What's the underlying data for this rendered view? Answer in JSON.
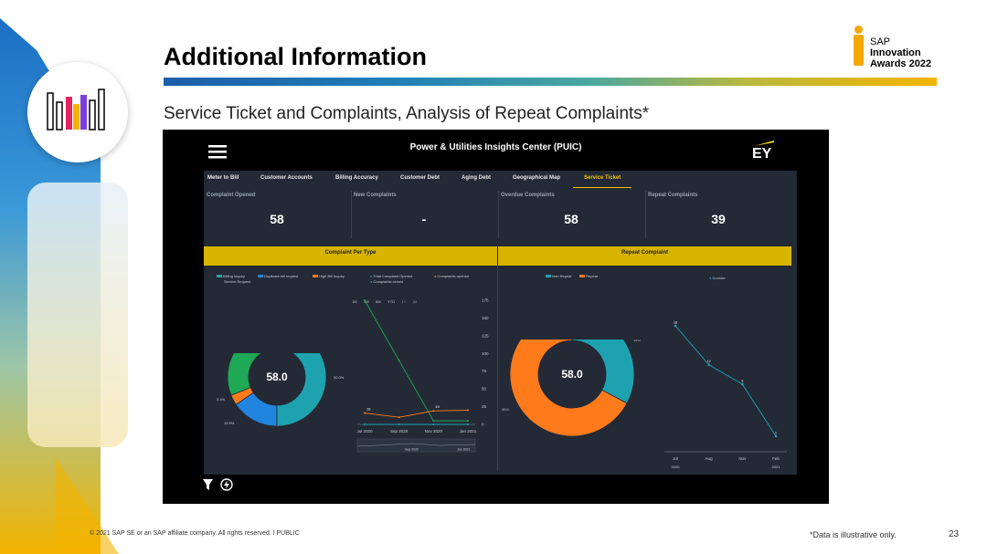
{
  "slide": {
    "title": "Additional Information",
    "subtitle": "Service Ticket and Complaints, Analysis of Repeat Complaints*",
    "logo_lines": [
      "SAP",
      "Innovation",
      "Awards 2022"
    ],
    "footer_copyright": "© 2021 SAP SE or an SAP affiliate company. All rights reserved.  ǀ  PUBLIC",
    "footer_note": "*Data is illustrative only.",
    "page_number": "23"
  },
  "dashboard": {
    "title": "Power & Utilities Insights Center (PUIC)",
    "brand": "EY",
    "tabs": [
      "Meter to Bill",
      "Customer Accounts",
      "Billing Accuracy",
      "Customer Debt",
      "Aging Debt",
      "Geographical Map",
      "Service Ticket"
    ],
    "active_tab": "Service Ticket",
    "kpis": [
      {
        "label": "Complaint Opened",
        "value": "58"
      },
      {
        "label": "New Complaints",
        "value": "-"
      },
      {
        "label": "Overdue Complaints",
        "value": "58"
      },
      {
        "label": "Repeat Complaints",
        "value": "39"
      }
    ],
    "section_left": "Complaint Per Type",
    "section_right": "Repeat Complaint",
    "time_filters": [
      "1M",
      "3M",
      "6M",
      "YTD",
      "1Y",
      "All"
    ],
    "colors": {
      "teal": "#1fa2b0",
      "blue": "#2185e0",
      "orange": "#ff7a1a",
      "green": "#1fa855",
      "yellow": "#d6b400"
    }
  },
  "chart_data": [
    {
      "type": "pie",
      "title": "Complaint Per Type",
      "center_label": "58.0",
      "legend": [
        "Billing Inquiry",
        "Duplicate bill request",
        "High Bill Inquiry",
        "Service Request"
      ],
      "slices": [
        {
          "name": "Billing Inquiry",
          "value": 50.0,
          "label": "50.0%",
          "color": "#1fa2b0"
        },
        {
          "name": "Duplicate bill request",
          "value": 15.5,
          "label": "15.5%",
          "color": "#2185e0"
        },
        {
          "name": "High Bill Inquiry",
          "value": 3.4,
          "label": "3.4%",
          "color": "#ff7a1a"
        },
        {
          "name": "Service Request",
          "value": 31.0,
          "label": "31.0%",
          "color": "#1fa855"
        }
      ]
    },
    {
      "type": "line",
      "legend": [
        "Total Complaint Opened",
        "Complaints opened",
        "Complaints closed"
      ],
      "x": [
        "Jul 2020",
        "Sep 2020",
        "Nov 2020",
        "Jan 2021"
      ],
      "ylim": [
        0,
        175
      ],
      "yticks": [
        0,
        25,
        50,
        75,
        100,
        125,
        150,
        175
      ],
      "series": [
        {
          "name": "Total Complaint Opened",
          "color": "#1fa855",
          "values": [
            175,
            90,
            5,
            5
          ]
        },
        {
          "name": "Complaints opened",
          "color": "#ff7a1a",
          "values": [
            16,
            10,
            19,
            20
          ]
        },
        {
          "name": "Complaints closed",
          "color": "#1fa2b0",
          "values": [
            0,
            0,
            0,
            0
          ]
        }
      ],
      "point_labels": [
        "16",
        "19"
      ],
      "navigator_labels": [
        "Sep 2020",
        "Jan 2021"
      ]
    },
    {
      "type": "pie",
      "title": "Repeat Complaint",
      "center_label": "58.0",
      "legend": [
        "Non Repeat",
        "Repeat"
      ],
      "slices": [
        {
          "name": "Non Repeat",
          "value": 19.0,
          "label": "19.0",
          "color": "#1fa2b0"
        },
        {
          "name": "Repeat",
          "value": 39.0,
          "label": "39.0",
          "color": "#ff7a1a"
        }
      ]
    },
    {
      "type": "line",
      "legend": [
        "Counter"
      ],
      "x": [
        "Jul",
        "Aug",
        "Nov",
        "Feb"
      ],
      "x_years": [
        "2020",
        "2021"
      ],
      "series": [
        {
          "name": "Counter",
          "color": "#1fa2b0",
          "values": [
            18,
            12,
            9,
            1
          ]
        }
      ],
      "point_labels": [
        "18",
        "12",
        "9",
        "1"
      ]
    }
  ]
}
